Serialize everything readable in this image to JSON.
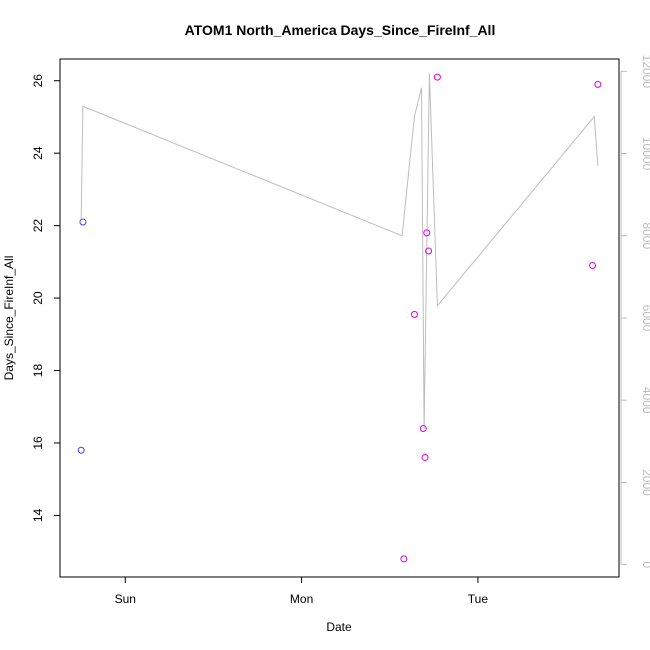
{
  "colors": {
    "points": "#e000e0",
    "points_early": "#4040ff",
    "line": "#bdbdbd",
    "axis": "#000000",
    "right_axis": "#bdbdbd"
  },
  "chart_data": {
    "type": "scatter",
    "title": "ATOM1 North_America Days_Since_FireInf_All",
    "xlabel": "Date",
    "ylabel": "Days_Since_FireInf_All",
    "x_ticks": [
      "Sun",
      "Mon",
      "Tue"
    ],
    "y_ticks": [
      "14",
      "16",
      "18",
      "20",
      "22",
      "24",
      "26"
    ],
    "y2_ticks": [
      "0",
      "2000",
      "4000",
      "6000",
      "8000",
      "10000",
      "12000"
    ],
    "ylim": [
      12.3,
      26.6
    ],
    "y2lim": [
      -300,
      12300
    ],
    "x_unit": "days since Sun 00:00",
    "xlim": [
      -0.37,
      2.8
    ],
    "grid": false,
    "points": [
      {
        "x": -0.25,
        "y": 15.8,
        "color": "points_early"
      },
      {
        "x": -0.24,
        "y": 22.1,
        "color": "points_early"
      },
      {
        "x": 1.58,
        "y": 12.8
      },
      {
        "x": 1.64,
        "y": 19.55
      },
      {
        "x": 1.69,
        "y": 16.4
      },
      {
        "x": 1.7,
        "y": 15.6
      },
      {
        "x": 1.71,
        "y": 21.8
      },
      {
        "x": 1.72,
        "y": 21.3
      },
      {
        "x": 1.77,
        "y": 26.1
      },
      {
        "x": 2.65,
        "y": 20.9
      },
      {
        "x": 2.68,
        "y": 25.9
      }
    ],
    "line_series": {
      "axis": "right",
      "x": [
        -0.25,
        -0.24,
        1.57,
        1.64,
        1.68,
        1.695,
        1.725,
        1.77,
        2.66,
        2.68
      ],
      "y": [
        8400,
        11150,
        8000,
        10900,
        11600,
        3300,
        11950,
        6300,
        10900,
        9700
      ]
    }
  }
}
